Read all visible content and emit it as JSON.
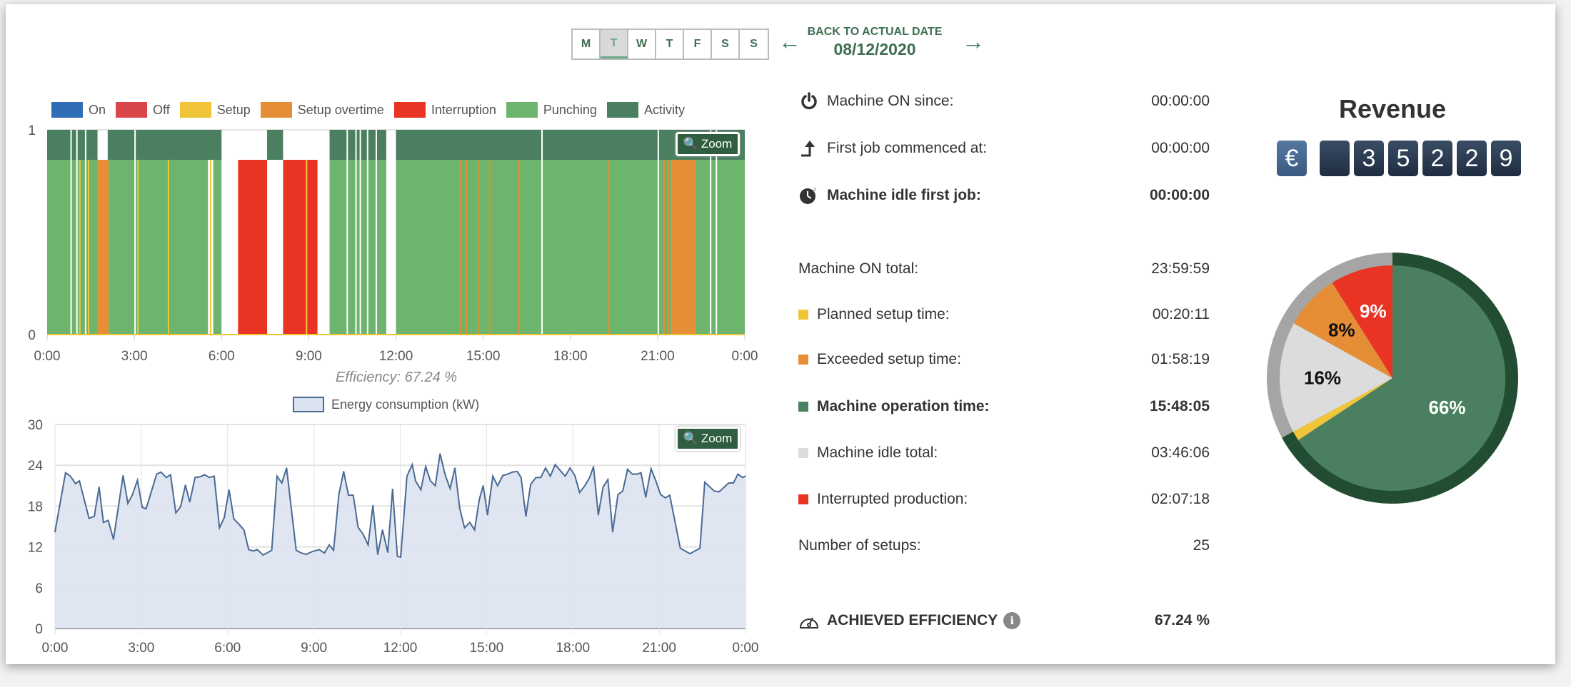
{
  "nav": {
    "days": [
      "M",
      "T",
      "W",
      "T",
      "F",
      "S",
      "S"
    ],
    "selected_day_index": 1,
    "back_label": "BACK TO ACTUAL DATE",
    "date": "08/12/2020",
    "prev_icon": "arrow-left-icon",
    "next_icon": "arrow-right-icon"
  },
  "colors": {
    "on": "#2f6db5",
    "off": "#d9474b",
    "setup": "#f0c53a",
    "setup_overtime": "#e58e35",
    "interruption": "#e93323",
    "punching": "#6db46d",
    "activity": "#4a8060",
    "accent": "#2f5e40"
  },
  "timeline": {
    "legend": [
      {
        "key": "on",
        "label": "On"
      },
      {
        "key": "off",
        "label": "Off"
      },
      {
        "key": "setup",
        "label": "Setup"
      },
      {
        "key": "setup_overtime",
        "label": "Setup overtime"
      },
      {
        "key": "interruption",
        "label": "Interruption"
      },
      {
        "key": "punching",
        "label": "Punching"
      },
      {
        "key": "activity",
        "label": "Activity"
      }
    ],
    "zoom_label": "Zoom",
    "y_ticks": [
      "0",
      "1"
    ],
    "x_ticks": [
      "0:00",
      "3:00",
      "6:00",
      "9:00",
      "12:00",
      "15:00",
      "18:00",
      "21:00",
      "0:00"
    ],
    "efficiency_label": "Efficiency: 67.24 %"
  },
  "chart_data": [
    {
      "type": "bar",
      "title": "",
      "xlabel": "",
      "ylabel": "",
      "x_range": [
        "0:00",
        "24:00"
      ],
      "ylim": [
        0,
        1
      ],
      "segments": [
        {
          "state": "punching",
          "start": "0:00",
          "end": "1:44"
        },
        {
          "state": "setup_overtime",
          "start": "1:44",
          "end": "2:07"
        },
        {
          "state": "punching",
          "start": "2:07",
          "end": "5:32"
        },
        {
          "state": "punching",
          "start": "5:43",
          "end": "6:00"
        },
        {
          "state": "interruption",
          "start": "6:34",
          "end": "7:34"
        },
        {
          "state": "interruption",
          "start": "8:07",
          "end": "9:18"
        },
        {
          "state": "punching",
          "start": "9:43",
          "end": "11:40"
        },
        {
          "state": "punching",
          "start": "12:00",
          "end": "21:28"
        },
        {
          "state": "setup_overtime",
          "start": "21:28",
          "end": "22:18"
        },
        {
          "state": "punching",
          "start": "22:18",
          "end": "24:00"
        }
      ],
      "markers": [
        {
          "state": "setup",
          "at": "1:06"
        },
        {
          "state": "setup",
          "at": "1:24"
        },
        {
          "state": "setup",
          "at": "3:06"
        },
        {
          "state": "setup",
          "at": "4:09"
        },
        {
          "state": "setup",
          "at": "5:36"
        },
        {
          "state": "setup",
          "at": "8:54"
        },
        {
          "state": "setup_overtime",
          "at": "14:12"
        },
        {
          "state": "setup_overtime",
          "at": "14:24"
        },
        {
          "state": "setup_overtime",
          "at": "14:48"
        },
        {
          "state": "setup_overtime",
          "at": "15:12"
        },
        {
          "state": "setup_overtime",
          "at": "16:12"
        },
        {
          "state": "setup_overtime",
          "at": "19:18"
        },
        {
          "state": "setup_overtime",
          "at": "21:12"
        },
        {
          "state": "setup_overtime",
          "at": "21:21"
        }
      ],
      "gaps": [
        "0:48",
        "1:00",
        "1:18",
        "3:00",
        "10:18",
        "10:36",
        "10:45",
        "11:00",
        "11:18",
        "17:00",
        "21:00",
        "22:48",
        "23:00"
      ],
      "activity": [
        {
          "start": "0:00",
          "end": "1:44"
        },
        {
          "start": "2:05",
          "end": "6:00"
        },
        {
          "start": "7:34",
          "end": "8:07"
        },
        {
          "start": "9:43",
          "end": "11:40"
        },
        {
          "start": "12:00",
          "end": "24:00"
        }
      ]
    },
    {
      "type": "area",
      "title": "",
      "series": [
        {
          "name": "Energy consumption (kW)",
          "color": "#4a6a94",
          "fill": "#dbe3f0"
        }
      ],
      "xlabel": "",
      "ylabel": "",
      "ylim": [
        0,
        30
      ],
      "y_ticks": [
        "0",
        "6",
        "12",
        "18",
        "24",
        "30"
      ],
      "x_ticks": [
        "0:00",
        "3:00",
        "6:00",
        "9:00",
        "12:00",
        "15:00",
        "18:00",
        "21:00",
        "0:00"
      ],
      "grid": true,
      "points": [
        [
          "0:00",
          14.2
        ],
        [
          "0:22",
          22.9
        ],
        [
          "0:32",
          22.4
        ],
        [
          "0:43",
          21.3
        ],
        [
          "0:51",
          21.7
        ],
        [
          "1:11",
          16.2
        ],
        [
          "1:22",
          16.5
        ],
        [
          "1:32",
          20.8
        ],
        [
          "1:41",
          15.6
        ],
        [
          "1:51",
          15.9
        ],
        [
          "2:02",
          13.1
        ],
        [
          "2:22",
          22.5
        ],
        [
          "2:32",
          18.4
        ],
        [
          "2:41",
          19.6
        ],
        [
          "2:52",
          21.8
        ],
        [
          "3:02",
          17.8
        ],
        [
          "3:10",
          17.6
        ],
        [
          "3:32",
          22.7
        ],
        [
          "3:41",
          23.0
        ],
        [
          "3:52",
          22.2
        ],
        [
          "4:01",
          22.6
        ],
        [
          "4:12",
          17.0
        ],
        [
          "4:22",
          17.9
        ],
        [
          "4:32",
          21.1
        ],
        [
          "4:41",
          18.6
        ],
        [
          "4:52",
          22.2
        ],
        [
          "5:02",
          22.3
        ],
        [
          "5:12",
          22.6
        ],
        [
          "5:22",
          22.2
        ],
        [
          "5:32",
          22.4
        ],
        [
          "5:43",
          14.8
        ],
        [
          "5:53",
          16.3
        ],
        [
          "6:03",
          20.4
        ],
        [
          "6:13",
          16.1
        ],
        [
          "6:23",
          15.4
        ],
        [
          "6:34",
          14.5
        ],
        [
          "6:44",
          11.6
        ],
        [
          "6:54",
          11.4
        ],
        [
          "7:02",
          11.6
        ],
        [
          "7:14",
          10.8
        ],
        [
          "7:22",
          11.1
        ],
        [
          "7:32",
          11.5
        ],
        [
          "7:43",
          22.4
        ],
        [
          "7:53",
          21.4
        ],
        [
          "8:03",
          23.6
        ],
        [
          "8:23",
          11.5
        ],
        [
          "8:34",
          11.1
        ],
        [
          "8:44",
          10.9
        ],
        [
          "8:56",
          11.3
        ],
        [
          "9:11",
          11.6
        ],
        [
          "9:22",
          11.1
        ],
        [
          "9:32",
          12.3
        ],
        [
          "9:41",
          11.5
        ],
        [
          "9:52",
          19.7
        ],
        [
          "10:02",
          23.1
        ],
        [
          "10:12",
          19.6
        ],
        [
          "10:22",
          19.6
        ],
        [
          "10:32",
          14.9
        ],
        [
          "10:43",
          13.8
        ],
        [
          "10:53",
          12.3
        ],
        [
          "11:03",
          18.1
        ],
        [
          "11:13",
          10.9
        ],
        [
          "11:23",
          14.5
        ],
        [
          "11:34",
          11.2
        ],
        [
          "11:44",
          20.5
        ],
        [
          "11:54",
          10.6
        ],
        [
          "12:01",
          10.5
        ],
        [
          "12:14",
          22.4
        ],
        [
          "12:25",
          24.1
        ],
        [
          "12:32",
          21.7
        ],
        [
          "12:43",
          20.4
        ],
        [
          "12:53",
          23.8
        ],
        [
          "13:03",
          21.7
        ],
        [
          "13:13",
          21.0
        ],
        [
          "13:23",
          25.7
        ],
        [
          "13:34",
          22.5
        ],
        [
          "13:44",
          20.6
        ],
        [
          "13:54",
          23.6
        ],
        [
          "14:04",
          17.7
        ],
        [
          "14:14",
          14.8
        ],
        [
          "14:25",
          15.6
        ],
        [
          "14:35",
          14.5
        ],
        [
          "14:45",
          19.0
        ],
        [
          "14:53",
          21.0
        ],
        [
          "15:02",
          16.7
        ],
        [
          "15:13",
          22.4
        ],
        [
          "15:23",
          21.0
        ],
        [
          "15:34",
          22.5
        ],
        [
          "15:44",
          22.7
        ],
        [
          "15:54",
          23.0
        ],
        [
          "16:04",
          23.1
        ],
        [
          "16:12",
          22.2
        ],
        [
          "16:22",
          16.5
        ],
        [
          "16:32",
          21.2
        ],
        [
          "16:43",
          22.2
        ],
        [
          "16:53",
          22.2
        ],
        [
          "17:03",
          23.6
        ],
        [
          "17:13",
          22.4
        ],
        [
          "17:23",
          24.1
        ],
        [
          "17:34",
          23.2
        ],
        [
          "17:44",
          22.4
        ],
        [
          "17:54",
          23.6
        ],
        [
          "18:04",
          22.5
        ],
        [
          "18:14",
          20.0
        ],
        [
          "18:25",
          21.0
        ],
        [
          "18:35",
          22.2
        ],
        [
          "18:43",
          23.8
        ],
        [
          "18:53",
          16.7
        ],
        [
          "19:03",
          20.8
        ],
        [
          "19:13",
          21.9
        ],
        [
          "19:23",
          14.2
        ],
        [
          "19:34",
          19.7
        ],
        [
          "19:44",
          20.2
        ],
        [
          "19:54",
          23.4
        ],
        [
          "20:04",
          22.7
        ],
        [
          "20:14",
          22.7
        ],
        [
          "20:22",
          22.9
        ],
        [
          "20:32",
          19.3
        ],
        [
          "20:43",
          23.5
        ],
        [
          "20:53",
          21.7
        ],
        [
          "21:03",
          19.7
        ],
        [
          "21:13",
          19.2
        ],
        [
          "21:22",
          19.6
        ],
        [
          "21:44",
          11.8
        ],
        [
          "22:04",
          11.0
        ],
        [
          "22:25",
          11.8
        ],
        [
          "22:35",
          21.5
        ],
        [
          "22:55",
          20.2
        ],
        [
          "23:05",
          20.1
        ],
        [
          "23:25",
          21.4
        ],
        [
          "23:35",
          21.4
        ],
        [
          "23:44",
          22.7
        ],
        [
          "23:54",
          22.2
        ],
        [
          "24:00",
          22.4
        ]
      ]
    },
    {
      "type": "pie",
      "title": "",
      "slices": [
        {
          "label": "66%",
          "value": 66,
          "color": "#4a8060",
          "ring": "#234d33",
          "text_color": "#ffffff"
        },
        {
          "label": "",
          "value": 1.4,
          "color": "#f0c53a",
          "ring": "#234d33"
        },
        {
          "label": "16%",
          "value": 16,
          "color": "#dcdcdc",
          "ring": "#a5a5a5",
          "text_color": "#111111"
        },
        {
          "label": "8%",
          "value": 8,
          "color": "#e58e35",
          "ring": "#a5a5a5",
          "text_color": "#111111"
        },
        {
          "label": "9%",
          "value": 9,
          "color": "#e93323",
          "ring": "#a5a5a5",
          "text_color": "#ffffff"
        }
      ]
    }
  ],
  "energy": {
    "legend_label": "Energy consumption (kW)",
    "zoom_label": "Zoom"
  },
  "stats": {
    "machine_on_since": {
      "label": "Machine ON since:",
      "value": "00:00:00",
      "icon": "power-icon"
    },
    "first_job": {
      "label": "First job commenced at:",
      "value": "00:00:00",
      "icon": "arrow-up-step-icon"
    },
    "idle_first_job": {
      "label": "Machine idle first job:",
      "value": "00:00:00",
      "icon": "sleeping-clock-icon"
    },
    "on_total": {
      "label": "Machine ON total:",
      "value": "23:59:59"
    },
    "planned_setup": {
      "label": "Planned setup time:",
      "value": "00:20:11"
    },
    "exceeded_setup": {
      "label": "Exceeded setup time:",
      "value": "01:58:19"
    },
    "operation": {
      "label": "Machine operation time:",
      "value": "15:48:05"
    },
    "idle_total": {
      "label": "Machine idle total:",
      "value": "03:46:06"
    },
    "interrupted": {
      "label": "Interrupted production:",
      "value": "02:07:18"
    },
    "setups": {
      "label": "Number of setups:",
      "value": "25"
    },
    "efficiency": {
      "label": "ACHIEVED EFFICIENCY",
      "value": "67.24 %",
      "icon": "gauge-icon"
    }
  },
  "revenue": {
    "title": "Revenue",
    "currency": "€",
    "digits": [
      "",
      "3",
      "5",
      "2",
      "2",
      "9"
    ]
  }
}
